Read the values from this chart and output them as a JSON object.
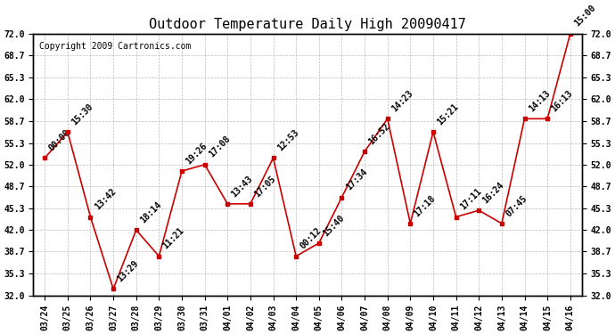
{
  "title": "Outdoor Temperature Daily High 20090417",
  "copyright": "Copyright 2009 Cartronics.com",
  "dates": [
    "03/24",
    "03/25",
    "03/26",
    "03/27",
    "03/28",
    "03/29",
    "03/30",
    "03/31",
    "04/01",
    "04/02",
    "04/03",
    "04/04",
    "04/05",
    "04/06",
    "04/07",
    "04/08",
    "04/09",
    "04/10",
    "04/11",
    "04/12",
    "04/13",
    "04/14",
    "04/15",
    "04/16"
  ],
  "temperatures": [
    53.0,
    57.0,
    44.0,
    33.0,
    42.0,
    38.0,
    51.0,
    52.0,
    46.0,
    46.0,
    53.0,
    38.0,
    40.0,
    47.0,
    54.0,
    59.0,
    43.0,
    57.0,
    44.0,
    45.0,
    43.0,
    59.0,
    59.0,
    72.0
  ],
  "point_labels": [
    "00:00",
    "15:30",
    "13:42",
    "13:29",
    "18:14",
    "11:21",
    "19:26",
    "17:08",
    "13:43",
    "17:05",
    "12:53",
    "00:12",
    "15:40",
    "17:34",
    "16:52",
    "14:23",
    "17:18",
    "15:21",
    "17:11",
    "16:24",
    "07:45",
    "14:13",
    "16:13",
    "15:00"
  ],
  "yticks": [
    32.0,
    35.3,
    38.7,
    42.0,
    45.3,
    48.7,
    52.0,
    55.3,
    58.7,
    62.0,
    65.3,
    68.7,
    72.0
  ],
  "line_color": "#cc0000",
  "marker_color": "#cc0000",
  "bg_color": "#ffffff",
  "grid_color": "#bbbbbb",
  "title_fontsize": 11,
  "tick_fontsize": 7,
  "label_fontsize": 7,
  "copyright_fontsize": 7,
  "ylim_min": 32.0,
  "ylim_max": 72.0
}
